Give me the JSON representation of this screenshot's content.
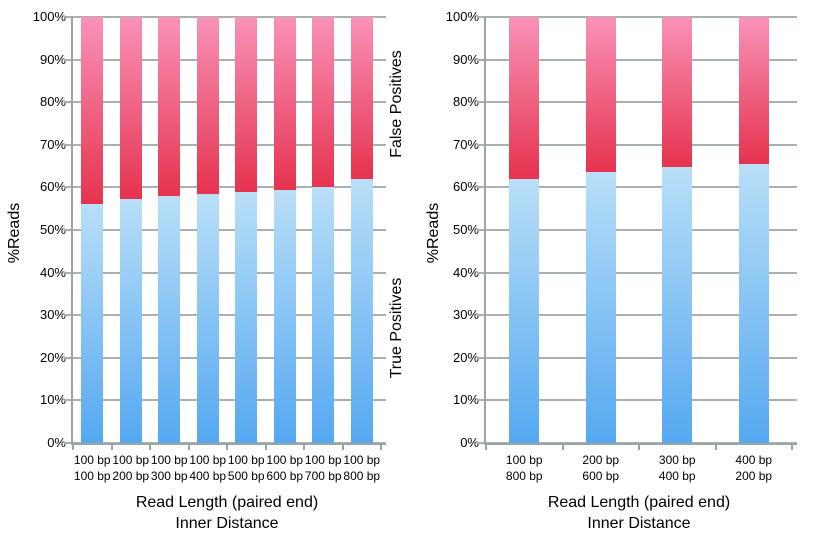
{
  "colors": {
    "true_positive_gradient_top": "#B9DFF8",
    "true_positive_gradient_bottom": "#55A8F1",
    "false_positive_gradient_top": "#F992B8",
    "false_positive_gradient_bottom": "#E5334E",
    "gridline": "#A7B1B1",
    "axis": "#9AA5A5",
    "text": "#000000"
  },
  "chart_data": [
    {
      "type": "bar",
      "stacked": true,
      "ylabel": "%Reads",
      "xlabel_line1": "Read Length (paired end)",
      "xlabel_line2": "Inner Distance",
      "ylim": [
        0,
        100
      ],
      "ytick_step": 10,
      "ytick_labels": [
        "0%",
        "10%",
        "20%",
        "30%",
        "40%",
        "50%",
        "60%",
        "70%",
        "80%",
        "90%",
        "100%"
      ],
      "grid": true,
      "categories_line1": [
        "100 bp",
        "100 bp",
        "100 bp",
        "100 bp",
        "100 bp",
        "100 bp",
        "100 bp",
        "100 bp"
      ],
      "categories_line2": [
        "100 bp",
        "200 bp",
        "300 bp",
        "400 bp",
        "500 bp",
        "600 bp",
        "700 bp",
        "800 bp"
      ],
      "series": [
        {
          "name": "True Positives",
          "values": [
            56,
            57.2,
            58,
            58.5,
            59,
            59.3,
            60.2,
            62
          ]
        },
        {
          "name": "False Positives",
          "values": [
            44,
            42.8,
            42,
            41.5,
            41,
            40.7,
            39.8,
            38
          ]
        }
      ],
      "side_labels": {
        "top": "False Positives",
        "bottom": "True Positives"
      }
    },
    {
      "type": "bar",
      "stacked": true,
      "ylabel": "%Reads",
      "xlabel_line1": "Read Length (paired end)",
      "xlabel_line2": "Inner Distance",
      "ylim": [
        0,
        100
      ],
      "ytick_step": 10,
      "ytick_labels": [
        "0%",
        "10%",
        "20%",
        "30%",
        "40%",
        "50%",
        "60%",
        "70%",
        "80%",
        "90%",
        "100%"
      ],
      "grid": true,
      "categories_line1": [
        "100 bp",
        "200 bp",
        "300 bp",
        "400 bp"
      ],
      "categories_line2": [
        "800 bp",
        "600 bp",
        "400 bp",
        "200 bp"
      ],
      "series": [
        {
          "name": "True Positives",
          "values": [
            62,
            63.5,
            64.7,
            65.6
          ]
        },
        {
          "name": "False Positives",
          "values": [
            38,
            36.5,
            35.3,
            34.4
          ]
        }
      ]
    }
  ]
}
